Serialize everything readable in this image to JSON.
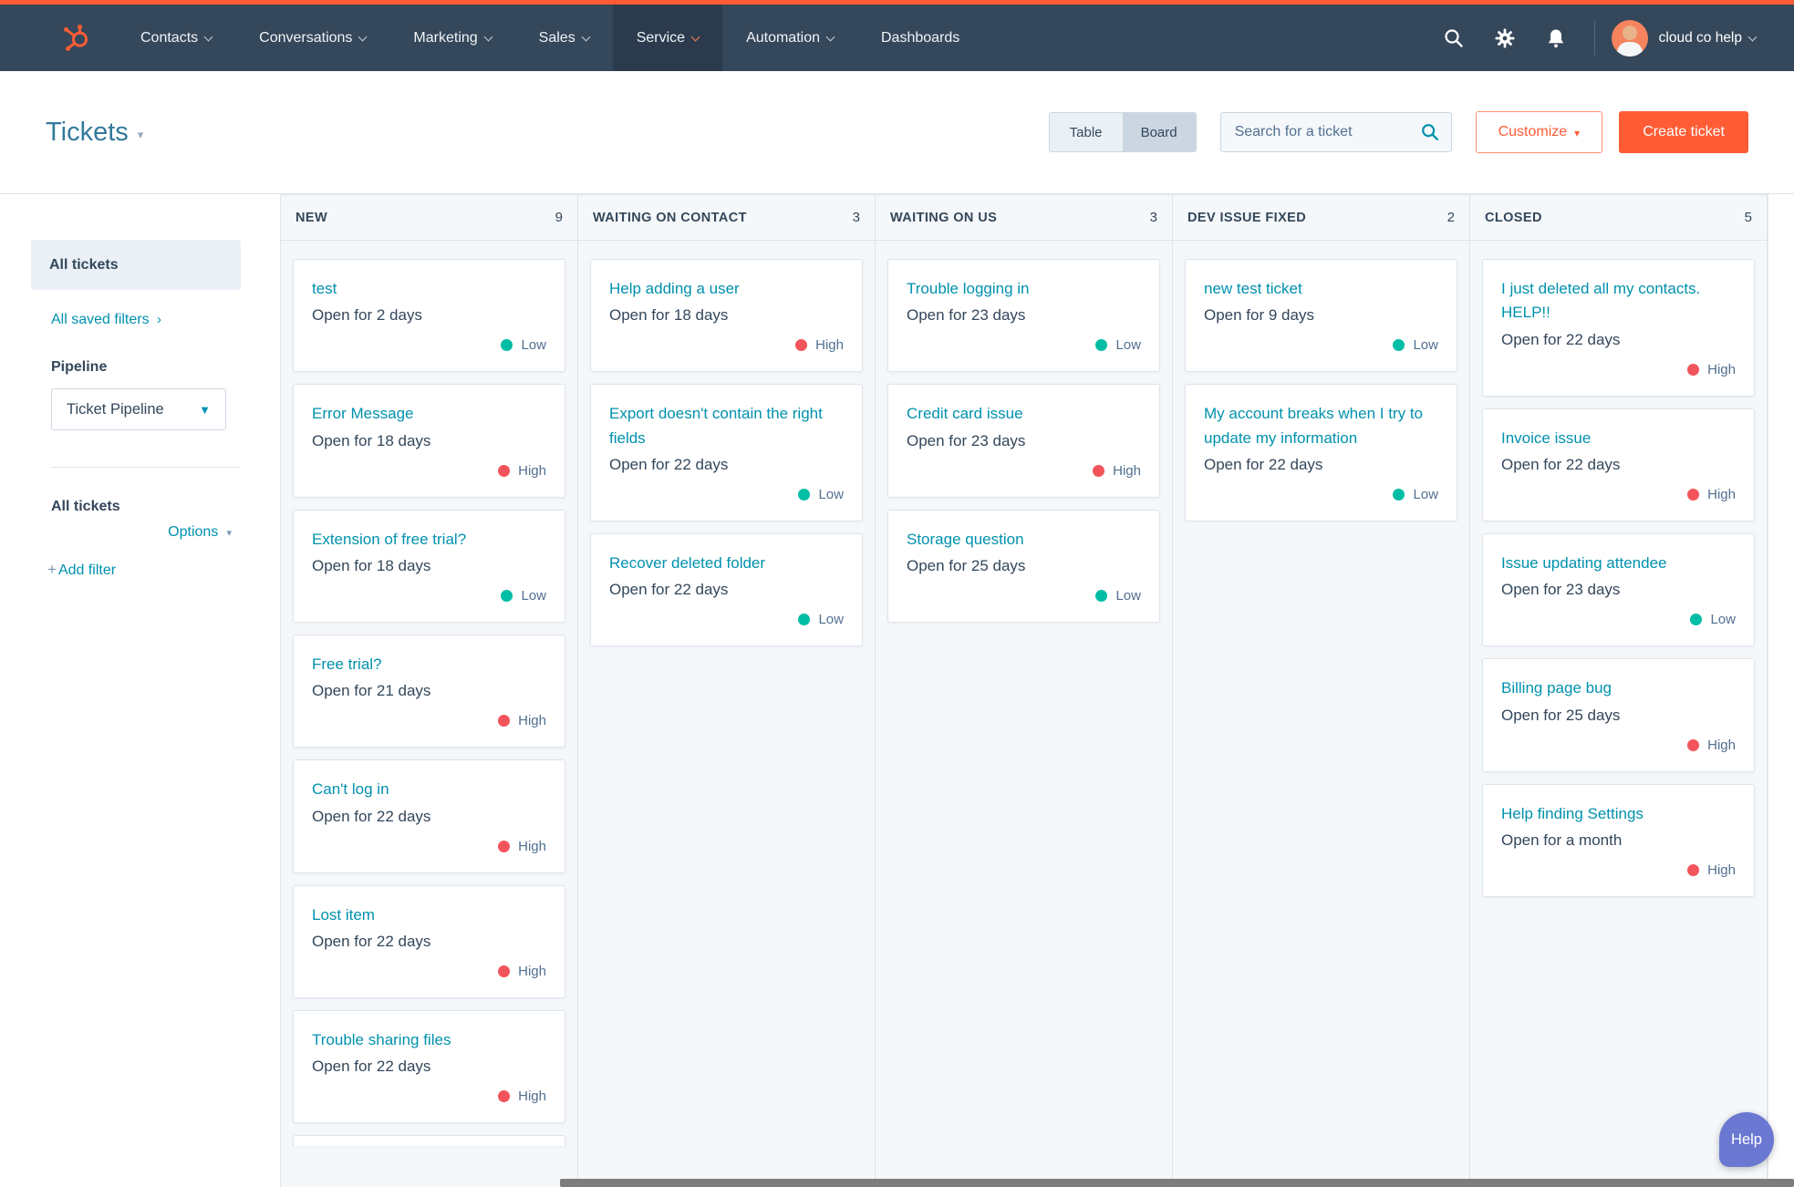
{
  "nav": {
    "items": [
      {
        "label": "Contacts"
      },
      {
        "label": "Conversations"
      },
      {
        "label": "Marketing"
      },
      {
        "label": "Sales"
      },
      {
        "label": "Service",
        "active": true
      },
      {
        "label": "Automation"
      },
      {
        "label": "Dashboards"
      }
    ],
    "account_name": "cloud co help"
  },
  "header": {
    "title": "Tickets",
    "view_toggle": {
      "table_label": "Table",
      "board_label": "Board",
      "selected": "Board"
    },
    "search_placeholder": "Search for a ticket",
    "customize_label": "Customize",
    "create_ticket_label": "Create ticket"
  },
  "sidebar": {
    "selected_view": "All tickets",
    "saved_filters_link": "All saved filters",
    "pipeline_label": "Pipeline",
    "pipeline_value": "Ticket Pipeline",
    "filter_section_title": "All tickets",
    "options_label": "Options",
    "add_filter_label": "Add filter"
  },
  "board": {
    "columns": [
      {
        "name": "NEW",
        "count": "9",
        "partial_card": true,
        "cards": [
          {
            "title": "test",
            "open": "Open for 2 days",
            "priority": "Low"
          },
          {
            "title": "Error Message",
            "open": "Open for 18 days",
            "priority": "High"
          },
          {
            "title": "Extension of free trial?",
            "open": "Open for 18 days",
            "priority": "Low"
          },
          {
            "title": "Free trial?",
            "open": "Open for 21 days",
            "priority": "High"
          },
          {
            "title": "Can't log in",
            "open": "Open for 22 days",
            "priority": "High"
          },
          {
            "title": "Lost item",
            "open": "Open for 22 days",
            "priority": "High"
          },
          {
            "title": "Trouble sharing files",
            "open": "Open for 22 days",
            "priority": "High"
          }
        ]
      },
      {
        "name": "WAITING ON CONTACT",
        "count": "3",
        "cards": [
          {
            "title": "Help adding a user",
            "open": "Open for 18 days",
            "priority": "High"
          },
          {
            "title": "Export doesn't contain the right fields",
            "open": "Open for 22 days",
            "priority": "Low"
          },
          {
            "title": "Recover deleted folder",
            "open": "Open for 22 days",
            "priority": "Low"
          }
        ]
      },
      {
        "name": "WAITING ON US",
        "count": "3",
        "cards": [
          {
            "title": "Trouble logging in",
            "open": "Open for 23 days",
            "priority": "Low"
          },
          {
            "title": "Credit card issue",
            "open": "Open for 23 days",
            "priority": "High"
          },
          {
            "title": "Storage question",
            "open": "Open for 25 days",
            "priority": "Low"
          }
        ]
      },
      {
        "name": "DEV ISSUE FIXED",
        "count": "2",
        "cards": [
          {
            "title": "new test ticket",
            "open": "Open for 9 days",
            "priority": "Low"
          },
          {
            "title": "My account breaks when I try to update my information",
            "open": "Open for 22 days",
            "priority": "Low"
          }
        ]
      },
      {
        "name": "CLOSED",
        "count": "5",
        "cards": [
          {
            "title": "I just deleted all my contacts. HELP!!",
            "open": "Open for 22 days",
            "priority": "High"
          },
          {
            "title": "Invoice issue",
            "open": "Open for 22 days",
            "priority": "High"
          },
          {
            "title": "Issue updating attendee",
            "open": "Open for 23 days",
            "priority": "Low"
          },
          {
            "title": "Billing page bug",
            "open": "Open for 25 days",
            "priority": "High"
          },
          {
            "title": "Help finding Settings",
            "open": "Open for a month",
            "priority": "High"
          }
        ]
      }
    ]
  },
  "help_button_label": "Help",
  "colors": {
    "accent_orange": "#ff5c35",
    "nav_bg": "#35475a",
    "nav_active_bg": "#2b3b4d",
    "link_teal": "#0091ae",
    "text_dark": "#33475b",
    "priority_low": "#00bda5",
    "priority_high": "#f2545b",
    "board_bg": "#f5f8fa",
    "card_border": "#dfe3eb",
    "help_purple": "#6a78d1"
  }
}
